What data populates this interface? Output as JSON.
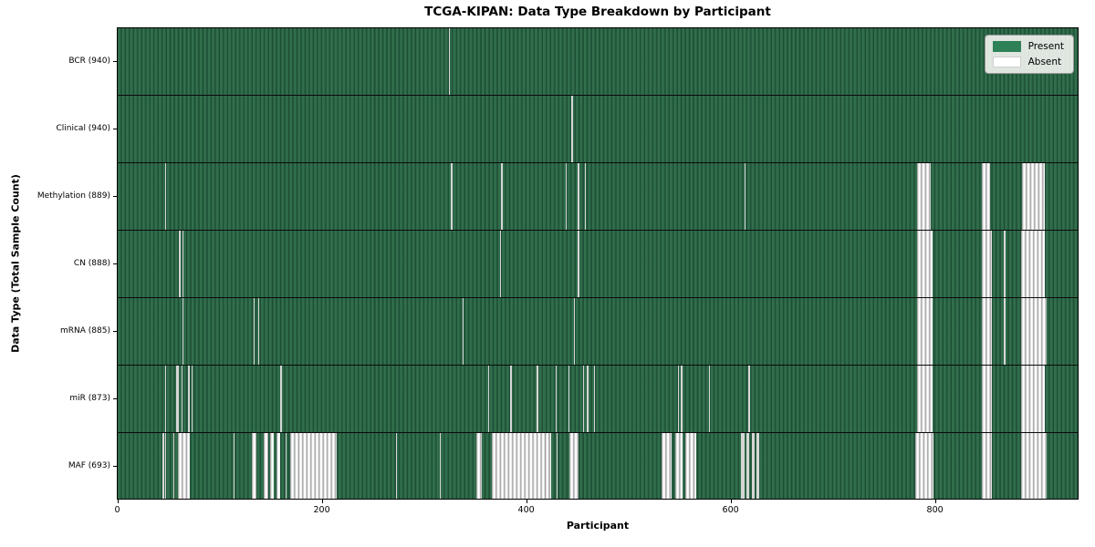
{
  "chart_data": {
    "type": "heatmap",
    "title": "TCGA-KIPAN: Data Type Breakdown by Participant",
    "xlabel": "Participant",
    "ylabel": "Data Type (Total Sample Count)",
    "x_ticks": [
      0,
      200,
      400,
      600,
      800
    ],
    "x_min": -0.5,
    "x_max": 940.5,
    "n_participants": 941,
    "grid": false,
    "colors": {
      "present_fill": "#2e6b49",
      "present_edge": "#1d4e36",
      "absent_fill": "#ffffff",
      "absent_edge": "#8f8f8f",
      "row_separator": "#0b0b0b"
    },
    "legend": {
      "position": "upper right",
      "entries": [
        {
          "label": "Present",
          "color": "#2e8057",
          "edge": "#2e8057"
        },
        {
          "label": "Absent",
          "color": "#ffffff",
          "edge": "#cfcfcf"
        }
      ]
    },
    "rows": [
      {
        "data_type": "bcr",
        "label": "BCR (940)",
        "sample_count": 940,
        "absent_ranges": [
          [
            325,
            326
          ]
        ]
      },
      {
        "data_type": "clinical",
        "label": "Clinical (940)",
        "sample_count": 940,
        "absent_ranges": [
          [
            445,
            446
          ]
        ]
      },
      {
        "data_type": "methylation",
        "label": "Methylation (889)",
        "sample_count": 889,
        "absent_ranges": [
          [
            47,
            48
          ],
          [
            327,
            328
          ],
          [
            376,
            377
          ],
          [
            439,
            440
          ],
          [
            451,
            452
          ],
          [
            458,
            459
          ],
          [
            614,
            615
          ],
          [
            783,
            797
          ],
          [
            846,
            855
          ],
          [
            886,
            908
          ]
        ]
      },
      {
        "data_type": "cn",
        "label": "CN (888)",
        "sample_count": 888,
        "absent_ranges": [
          [
            61,
            62
          ],
          [
            64,
            65
          ],
          [
            375,
            376
          ],
          [
            451,
            452
          ],
          [
            783,
            798
          ],
          [
            846,
            856
          ],
          [
            868,
            869
          ],
          [
            885,
            908
          ]
        ]
      },
      {
        "data_type": "mrna",
        "label": "mRNA (885)",
        "sample_count": 885,
        "absent_ranges": [
          [
            64,
            65
          ],
          [
            134,
            135
          ],
          [
            138,
            139
          ],
          [
            338,
            339
          ],
          [
            447,
            448
          ],
          [
            783,
            798
          ],
          [
            846,
            856
          ],
          [
            868,
            869
          ],
          [
            885,
            910
          ]
        ]
      },
      {
        "data_type": "mir",
        "label": "miR (873)",
        "sample_count": 873,
        "absent_ranges": [
          [
            47,
            48
          ],
          [
            58,
            61
          ],
          [
            63,
            64
          ],
          [
            70,
            71
          ],
          [
            73,
            74
          ],
          [
            160,
            161
          ],
          [
            363,
            364
          ],
          [
            385,
            386
          ],
          [
            411,
            412
          ],
          [
            429,
            430
          ],
          [
            442,
            443
          ],
          [
            456,
            457
          ],
          [
            460,
            461
          ],
          [
            467,
            468
          ],
          [
            549,
            550
          ],
          [
            552,
            553
          ],
          [
            579,
            580
          ],
          [
            618,
            619
          ],
          [
            783,
            798
          ],
          [
            846,
            856
          ],
          [
            885,
            908
          ]
        ]
      },
      {
        "data_type": "maf",
        "label": "MAF (693)",
        "sample_count": 693,
        "absent_ranges": [
          [
            45,
            46
          ],
          [
            47,
            48
          ],
          [
            55,
            56
          ],
          [
            60,
            72
          ],
          [
            114,
            115
          ],
          [
            132,
            137
          ],
          [
            144,
            148
          ],
          [
            150,
            154
          ],
          [
            156,
            160
          ],
          [
            165,
            166
          ],
          [
            170,
            215
          ],
          [
            273,
            274
          ],
          [
            316,
            317
          ],
          [
            352,
            357
          ],
          [
            367,
            425
          ],
          [
            430,
            431
          ],
          [
            443,
            452
          ],
          [
            533,
            543
          ],
          [
            546,
            554
          ],
          [
            556,
            567
          ],
          [
            611,
            614
          ],
          [
            616,
            619
          ],
          [
            621,
            624
          ],
          [
            626,
            629
          ],
          [
            781,
            799
          ],
          [
            846,
            856
          ],
          [
            885,
            910
          ]
        ]
      }
    ]
  }
}
